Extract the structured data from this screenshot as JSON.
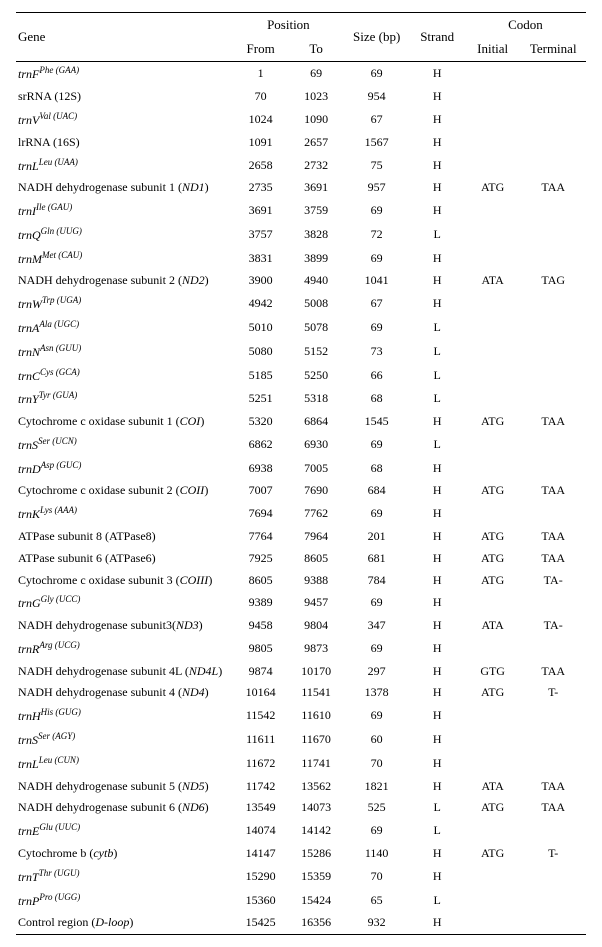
{
  "headers": {
    "gene": "Gene",
    "position": "Position",
    "from": "From",
    "to": "To",
    "size": "Size (bp)",
    "strand": "Strand",
    "codon": "Codon",
    "initial": "Initial",
    "terminal": "Terminal"
  },
  "rows": [
    {
      "gene_html": "<span class='ital'>trnF</span><sup><span class='ital'>Phe (GAA)</span></sup>",
      "from": "1",
      "to": "69",
      "size": "69",
      "strand": "H",
      "initial": "",
      "terminal": ""
    },
    {
      "gene_html": "srRNA (12S)",
      "from": "70",
      "to": "1023",
      "size": "954",
      "strand": "H",
      "initial": "",
      "terminal": ""
    },
    {
      "gene_html": "<span class='ital'>trnV</span><sup><span class='ital'>Val (UAC)</span></sup>",
      "from": "1024",
      "to": "1090",
      "size": "67",
      "strand": "H",
      "initial": "",
      "terminal": ""
    },
    {
      "gene_html": "lrRNA (16S)",
      "from": "1091",
      "to": "2657",
      "size": "1567",
      "strand": "H",
      "initial": "",
      "terminal": ""
    },
    {
      "gene_html": "<span class='ital'>trnL</span><sup><span class='ital'>Leu (UAA)</span></sup>",
      "from": "2658",
      "to": "2732",
      "size": "75",
      "strand": "H",
      "initial": "",
      "terminal": ""
    },
    {
      "gene_html": "NADH dehydrogenase subunit 1 (<span class='ital'>ND1</span>)",
      "from": "2735",
      "to": "3691",
      "size": "957",
      "strand": "H",
      "initial": "ATG",
      "terminal": "TAA"
    },
    {
      "gene_html": "<span class='ital'>trnI</span><sup><span class='ital'>Ile (GAU)</span></sup>",
      "from": "3691",
      "to": "3759",
      "size": "69",
      "strand": "H",
      "initial": "",
      "terminal": ""
    },
    {
      "gene_html": "<span class='ital'>trnQ</span><sup><span class='ital'>Gln (UUG)</span></sup>",
      "from": "3757",
      "to": "3828",
      "size": "72",
      "strand": "L",
      "initial": "",
      "terminal": ""
    },
    {
      "gene_html": "<span class='ital'>trnM</span><sup><span class='ital'>Met (CAU)</span></sup>",
      "from": "3831",
      "to": "3899",
      "size": "69",
      "strand": "H",
      "initial": "",
      "terminal": ""
    },
    {
      "gene_html": "NADH dehydrogenase subunit 2 (<span class='ital'>ND2</span>)",
      "from": "3900",
      "to": "4940",
      "size": "1041",
      "strand": "H",
      "initial": "ATA",
      "terminal": "TAG"
    },
    {
      "gene_html": "<span class='ital'>trnW</span><sup><span class='ital'>Trp (UGA)</span></sup>",
      "from": "4942",
      "to": "5008",
      "size": "67",
      "strand": "H",
      "initial": "",
      "terminal": ""
    },
    {
      "gene_html": "<span class='ital'>trnA</span><sup><span class='ital'>Ala (UGC)</span></sup>",
      "from": "5010",
      "to": "5078",
      "size": "69",
      "strand": "L",
      "initial": "",
      "terminal": ""
    },
    {
      "gene_html": "<span class='ital'>trnN</span><sup><span class='ital'>Asn (GUU)</span></sup>",
      "from": "5080",
      "to": "5152",
      "size": "73",
      "strand": "L",
      "initial": "",
      "terminal": ""
    },
    {
      "gene_html": "<span class='ital'>trnC</span><sup><span class='ital'>Cys (GCA)</span></sup>",
      "from": "5185",
      "to": "5250",
      "size": "66",
      "strand": "L",
      "initial": "",
      "terminal": ""
    },
    {
      "gene_html": "<span class='ital'>trnY</span><sup><span class='ital'>Tyr (GUA)</span></sup>",
      "from": "5251",
      "to": "5318",
      "size": "68",
      "strand": "L",
      "initial": "",
      "terminal": ""
    },
    {
      "gene_html": "Cytochrome c oxidase subunit 1 (<span class='ital'>COI</span>)",
      "from": "5320",
      "to": "6864",
      "size": "1545",
      "strand": "H",
      "initial": "ATG",
      "terminal": "TAA"
    },
    {
      "gene_html": "<span class='ital'>trnS</span><sup><span class='ital'>Ser (UCN)</span></sup>",
      "from": "6862",
      "to": "6930",
      "size": "69",
      "strand": "L",
      "initial": "",
      "terminal": ""
    },
    {
      "gene_html": "<span class='ital'>trnD</span><sup><span class='ital'>Asp (GUC)</span></sup>",
      "from": "6938",
      "to": "7005",
      "size": "68",
      "strand": "H",
      "initial": "",
      "terminal": ""
    },
    {
      "gene_html": "Cytochrome c oxidase subunit 2 (<span class='ital'>COII</span>)",
      "from": "7007",
      "to": "7690",
      "size": "684",
      "strand": "H",
      "initial": "ATG",
      "terminal": "TAA"
    },
    {
      "gene_html": "<span class='ital'>trnK</span><sup><span class='ital'>Lys (AAA)</span></sup>",
      "from": "7694",
      "to": "7762",
      "size": "69",
      "strand": "H",
      "initial": "",
      "terminal": ""
    },
    {
      "gene_html": "ATPase subunit 8 (ATPase8)",
      "from": "7764",
      "to": "7964",
      "size": "201",
      "strand": "H",
      "initial": "ATG",
      "terminal": "TAA"
    },
    {
      "gene_html": "ATPase subunit 6 (ATPase6)",
      "from": "7925",
      "to": "8605",
      "size": "681",
      "strand": "H",
      "initial": "ATG",
      "terminal": "TAA"
    },
    {
      "gene_html": "Cytochrome c oxidase subunit 3 (<span class='ital'>COIII</span>)",
      "from": "8605",
      "to": "9388",
      "size": "784",
      "strand": "H",
      "initial": "ATG",
      "terminal": "TA-"
    },
    {
      "gene_html": "<span class='ital'>trnG</span><sup><span class='ital'>Gly (UCC)</span></sup>",
      "from": "9389",
      "to": "9457",
      "size": "69",
      "strand": "H",
      "initial": "",
      "terminal": ""
    },
    {
      "gene_html": "NADH dehydrogenase subunit3(<span class='ital'>ND3</span>)",
      "from": "9458",
      "to": "9804",
      "size": "347",
      "strand": "H",
      "initial": "ATA",
      "terminal": "TA-"
    },
    {
      "gene_html": "<span class='ital'>trnR</span><sup><span class='ital'>Arg (UCG)</span></sup>",
      "from": "9805",
      "to": "9873",
      "size": "69",
      "strand": "H",
      "initial": "",
      "terminal": ""
    },
    {
      "gene_html": "NADH dehydrogenase subunit 4L (<span class='ital'>ND4L</span>)",
      "from": "9874",
      "to": "10170",
      "size": "297",
      "strand": "H",
      "initial": "GTG",
      "terminal": "TAA"
    },
    {
      "gene_html": "NADH dehydrogenase subunit 4 (<span class='ital'>ND4</span>)",
      "from": "10164",
      "to": "11541",
      "size": "1378",
      "strand": "H",
      "initial": "ATG",
      "terminal": "T-"
    },
    {
      "gene_html": "<span class='ital'>trnH</span><sup><span class='ital'>His (GUG)</span></sup>",
      "from": "11542",
      "to": "11610",
      "size": "69",
      "strand": "H",
      "initial": "",
      "terminal": ""
    },
    {
      "gene_html": "<span class='ital'>trnS</span><sup><span class='ital'>Ser (AGY)</span></sup>",
      "from": "11611",
      "to": "11670",
      "size": "60",
      "strand": "H",
      "initial": "",
      "terminal": ""
    },
    {
      "gene_html": "<span class='ital'>trnL</span><sup><span class='ital'>Leu (CUN)</span></sup>",
      "from": "11672",
      "to": "11741",
      "size": "70",
      "strand": "H",
      "initial": "",
      "terminal": ""
    },
    {
      "gene_html": "NADH dehydrogenase subunit 5 (<span class='ital'>ND5</span>)",
      "from": "11742",
      "to": "13562",
      "size": "1821",
      "strand": "H",
      "initial": "ATA",
      "terminal": "TAA"
    },
    {
      "gene_html": "NADH dehydrogenase subunit 6 (<span class='ital'>ND6</span>)",
      "from": "13549",
      "to": "14073",
      "size": "525",
      "strand": "L",
      "initial": "ATG",
      "terminal": "TAA"
    },
    {
      "gene_html": "<span class='ital'>trnE</span><sup><span class='ital'>Glu (UUC)</span></sup>",
      "from": "14074",
      "to": "14142",
      "size": "69",
      "strand": "L",
      "initial": "",
      "terminal": ""
    },
    {
      "gene_html": "Cytochrome b (<span class='ital'>cytb</span>)",
      "from": "14147",
      "to": "15286",
      "size": "1140",
      "strand": "H",
      "initial": "ATG",
      "terminal": "T-"
    },
    {
      "gene_html": "<span class='ital'>trnT</span><sup><span class='ital'>Thr (UGU)</span></sup>",
      "from": "15290",
      "to": "15359",
      "size": "70",
      "strand": "H",
      "initial": "",
      "terminal": ""
    },
    {
      "gene_html": "<span class='ital'>trnP</span><sup><span class='ital'>Pro (UGG)</span></sup>",
      "from": "15360",
      "to": "15424",
      "size": "65",
      "strand": "L",
      "initial": "",
      "terminal": ""
    },
    {
      "gene_html": "Control region (<span class='ital'>D-loop</span>)",
      "from": "15425",
      "to": "16356",
      "size": "932",
      "strand": "H",
      "initial": "",
      "terminal": ""
    }
  ]
}
